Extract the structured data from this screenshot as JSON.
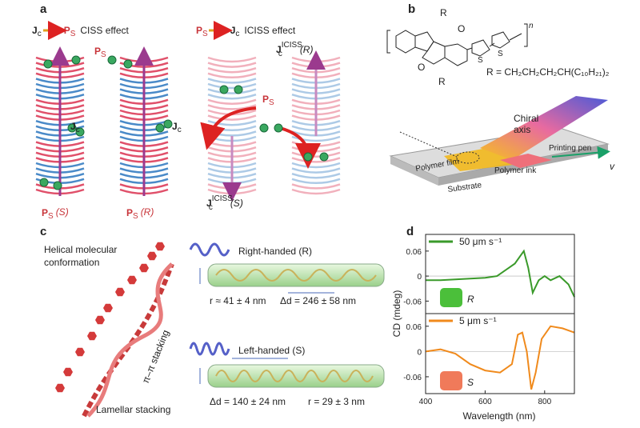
{
  "panel_a": {
    "letter": "a",
    "ciss": {
      "j": "J",
      "j_sub": "c",
      "p": "P",
      "p_sub": "S",
      "label": "CISS effect"
    },
    "iciss": {
      "p": "P",
      "p_sub": "S",
      "j": "J",
      "j_sub": "c",
      "label": "ICISS effect"
    },
    "helix_labels": [
      {
        "main": "P",
        "sub": "S",
        "tag": "(S)"
      },
      {
        "main": "P",
        "sub": "S",
        "tag": "(R)"
      },
      {
        "main": "J",
        "sub": "c",
        "sup": "ICISS",
        "tag": "(S)"
      },
      {
        "main": "J",
        "sub": "c",
        "sup": "ICISS",
        "tag": "(R)"
      }
    ],
    "inline_labels": [
      {
        "main": "P",
        "sub": "S"
      },
      {
        "main": "J",
        "sub": "c"
      },
      {
        "main": "J",
        "sub": "c"
      },
      {
        "main": "P",
        "sub": "S"
      }
    ]
  },
  "panel_b": {
    "letter": "b",
    "r_top": "R",
    "r_bottom": "R",
    "o_top": "O",
    "o_bottom": "O",
    "s1": "S",
    "s2": "S",
    "n": "n",
    "substituent": "R = CH₂CH₂CH₂CH(C₁₀H₂₁)₂",
    "chiral_axis": [
      "Chiral",
      "axis"
    ],
    "printing_pen": "Printing pen",
    "polymer_film": "Polymer film",
    "polymer_ink": "Polymer ink",
    "substrate": "Substrate",
    "velocity": "v"
  },
  "panel_c": {
    "letter": "c",
    "helical": [
      "Helical molecular",
      "conformation"
    ],
    "right": "Right-handed (R)",
    "left": "Left-handed (S)",
    "r_right": "r ≈ 41 ± 4 nm",
    "d_right": "Δd = 246 ± 58 nm",
    "d_left": "Δd = 140 ± 24 nm",
    "r_left": "r = 29 ± 3 nm",
    "pi": "π–π stacking",
    "lamellar": "Lamellar stacking"
  },
  "panel_d": {
    "letter": "d",
    "ylabel": "CD (mdeg)",
    "xlabel": "Wavelength (nm)",
    "r": "R",
    "s": "S"
  },
  "chart_data": [
    {
      "type": "line",
      "xlim": [
        400,
        900
      ],
      "ylim": [
        -0.09,
        0.1
      ],
      "yticks": [
        0.06,
        0,
        -0.06
      ],
      "x": [
        400,
        450,
        500,
        550,
        600,
        640,
        680,
        700,
        720,
        730,
        745,
        760,
        780,
        800,
        820,
        850,
        880,
        900
      ],
      "series": [
        {
          "name": "50 μm s⁻¹",
          "color": "#3a9a2a",
          "values": [
            -0.01,
            -0.01,
            -0.008,
            -0.006,
            -0.004,
            0.0,
            0.02,
            0.03,
            0.05,
            0.06,
            0.02,
            -0.04,
            -0.01,
            0.0,
            -0.01,
            0.0,
            -0.02,
            -0.05
          ]
        }
      ]
    },
    {
      "type": "line",
      "xlim": [
        400,
        900
      ],
      "ylim": [
        -0.1,
        0.09
      ],
      "yticks": [
        0.06,
        0,
        -0.06
      ],
      "xticks": [
        400,
        600,
        800
      ],
      "x": [
        400,
        450,
        500,
        550,
        600,
        650,
        690,
        710,
        725,
        740,
        755,
        770,
        790,
        820,
        860,
        900
      ],
      "series": [
        {
          "name": "5 μm s⁻¹",
          "color": "#f08a1c",
          "values": [
            0.0,
            0.005,
            -0.005,
            -0.03,
            -0.045,
            -0.05,
            -0.03,
            0.04,
            0.045,
            0.0,
            -0.09,
            -0.05,
            0.03,
            0.06,
            0.055,
            0.045
          ]
        }
      ]
    }
  ]
}
